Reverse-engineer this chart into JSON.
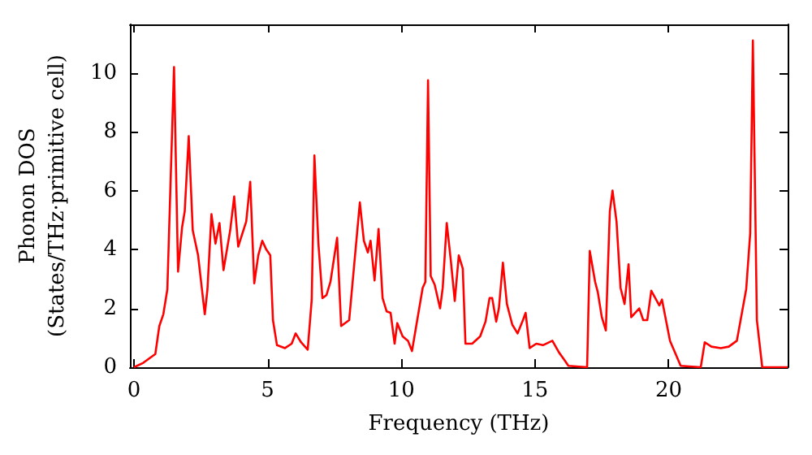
{
  "chart_data": {
    "type": "line",
    "xlabel": "Frequency (THz)",
    "ylabel": "Phonon DOS\n(States/THz·primitive cell)",
    "xlim": [
      -0.15,
      24.45
    ],
    "xticks": [
      0,
      5,
      10,
      15,
      20
    ],
    "ylim": [
      0,
      11.65
    ],
    "yticks": [
      0,
      2,
      4,
      6,
      8,
      10
    ],
    "marker": "none",
    "line_style": "solid",
    "series": [
      {
        "color": "#ff0000",
        "x": [
          0,
          0.35,
          0.8,
          0.95,
          1.1,
          1.25,
          1.5,
          1.65,
          1.8,
          1.9,
          2.05,
          2.2,
          2.4,
          2.65,
          2.75,
          2.9,
          3.05,
          3.2,
          3.35,
          3.6,
          3.75,
          3.9,
          4.2,
          4.35,
          4.5,
          4.65,
          4.8,
          4.95,
          5.1,
          5.2,
          5.35,
          5.65,
          5.9,
          6.05,
          6.25,
          6.5,
          6.65,
          6.75,
          6.9,
          7.05,
          7.2,
          7.35,
          7.6,
          7.75,
          8.05,
          8.45,
          8.6,
          8.75,
          8.85,
          9.0,
          9.15,
          9.3,
          9.45,
          9.6,
          9.75,
          9.85,
          10.05,
          10.25,
          10.4,
          10.8,
          10.9,
          11.0,
          11.1,
          11.25,
          11.45,
          11.55,
          11.7,
          11.85,
          12.0,
          12.15,
          12.3,
          12.4,
          12.65,
          12.95,
          13.15,
          13.3,
          13.4,
          13.55,
          13.65,
          13.8,
          13.95,
          14.15,
          14.35,
          14.55,
          14.65,
          14.8,
          15.05,
          15.3,
          15.65,
          15.9,
          16.1,
          16.25,
          16.95,
          17.05,
          17.25,
          17.35,
          17.5,
          17.65,
          17.8,
          17.9,
          18.05,
          18.2,
          18.35,
          18.5,
          18.6,
          18.9,
          19.05,
          19.2,
          19.35,
          19.65,
          19.75,
          20.05,
          20.45,
          21.2,
          21.35,
          21.6,
          21.95,
          22.25,
          22.55,
          22.9,
          23.05,
          23.15,
          23.3,
          23.5,
          24.45
        ],
        "values": [
          0,
          0.15,
          0.45,
          1.4,
          1.8,
          2.65,
          10.2,
          3.25,
          4.75,
          5.3,
          7.85,
          4.65,
          3.8,
          1.8,
          2.65,
          5.2,
          4.2,
          4.9,
          3.3,
          4.65,
          5.8,
          4.1,
          4.95,
          6.3,
          2.85,
          3.8,
          4.3,
          4.0,
          3.8,
          1.6,
          0.75,
          0.65,
          0.8,
          1.15,
          0.85,
          0.6,
          2.3,
          7.2,
          4.2,
          2.35,
          2.45,
          2.9,
          4.4,
          1.4,
          1.6,
          5.6,
          4.3,
          3.9,
          4.3,
          2.95,
          4.7,
          2.35,
          1.9,
          1.85,
          0.8,
          1.5,
          1.05,
          0.9,
          0.55,
          2.7,
          2.9,
          9.75,
          3.1,
          2.8,
          2.0,
          2.7,
          4.9,
          3.65,
          2.25,
          3.8,
          3.35,
          0.8,
          0.8,
          1.05,
          1.55,
          2.35,
          2.35,
          1.55,
          2.0,
          3.55,
          2.15,
          1.45,
          1.15,
          1.6,
          1.85,
          0.65,
          0.8,
          0.75,
          0.9,
          0.5,
          0.25,
          0.05,
          0,
          3.95,
          2.9,
          2.55,
          1.7,
          1.25,
          5.3,
          6.0,
          4.95,
          2.7,
          2.15,
          3.5,
          1.7,
          2.0,
          1.6,
          1.6,
          2.6,
          2.1,
          2.3,
          0.9,
          0.05,
          0,
          0.85,
          0.7,
          0.65,
          0.7,
          0.9,
          2.65,
          4.55,
          11.1,
          1.6,
          0,
          0
        ]
      }
    ]
  }
}
